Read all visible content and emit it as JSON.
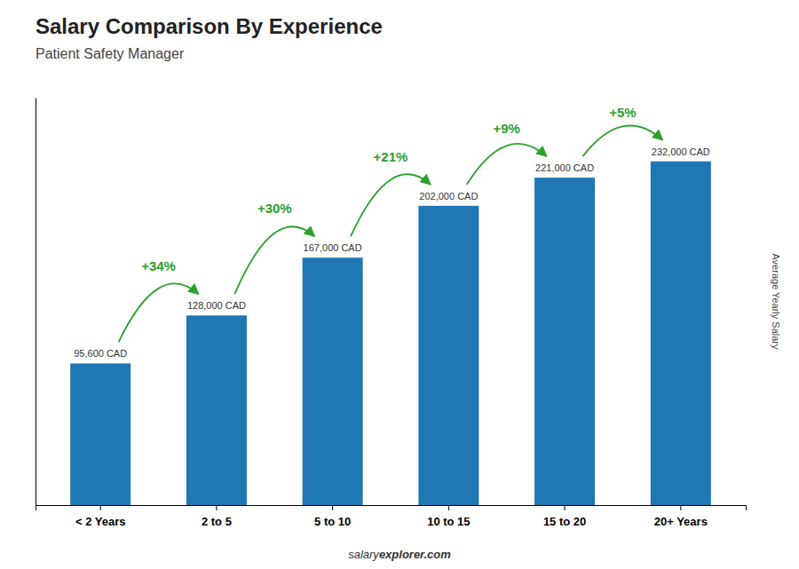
{
  "chart_data": {
    "type": "bar",
    "title": "Salary Comparison By Experience",
    "subtitle": "Patient Safety Manager",
    "categories": [
      "< 2 Years",
      "2 to 5",
      "5 to 10",
      "10 to 15",
      "15 to 20",
      "20+ Years"
    ],
    "values": [
      95600,
      128000,
      167000,
      202000,
      221000,
      232000
    ],
    "value_labels": [
      "95,600 CAD",
      "128,000 CAD",
      "167,000 CAD",
      "202,000 CAD",
      "221,000 CAD",
      "232,000 CAD"
    ],
    "data_labels": true,
    "annotations": [
      "+34%",
      "+30%",
      "+21%",
      "+9%",
      "+5%"
    ],
    "ylabel": "Average Yearly Salary",
    "footer": [
      "salary",
      "explorer",
      ".com"
    ],
    "ylim": [
      0,
      275000
    ],
    "tick_labels": "x",
    "grid": false
  }
}
